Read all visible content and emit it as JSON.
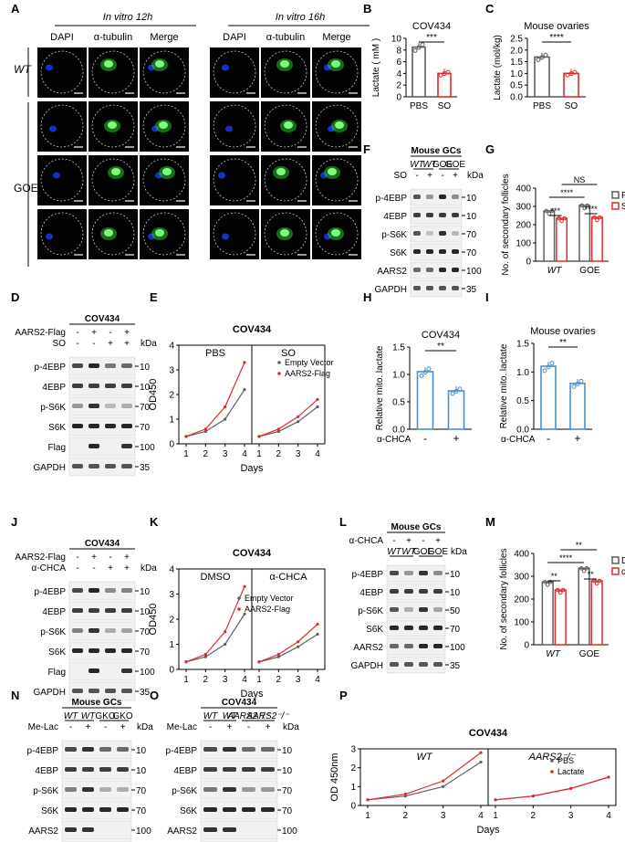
{
  "panels": {
    "A": "A",
    "B": "B",
    "C": "C",
    "D": "D",
    "E": "E",
    "F": "F",
    "G": "G",
    "H": "H",
    "I": "I",
    "J": "J",
    "K": "K",
    "L": "L",
    "M": "M",
    "N": "N",
    "O": "O",
    "P": "P"
  },
  "micro": {
    "h12": "In vitro 12h",
    "h16": "In vitro 16h",
    "dapi": "DAPI",
    "tubulin": "α-tubulin",
    "merge": "Merge",
    "wt": "WT",
    "goe": "GOE"
  },
  "wb": {
    "cov434": "COV434",
    "mgcs": "Mouse GCs",
    "kda": "kDa",
    "aars2flag": "AARS2-Flag",
    "so": "SO",
    "chca": "α-CHCA",
    "melac": "Me-Lac",
    "p4ebp": "p-4EBP",
    "e4ebp": "4EBP",
    "ps6k": "p-S6K",
    "s6k": "S6K",
    "flag": "Flag",
    "aars2": "AARS2",
    "gapdh": "GAPDH",
    "wt": "WT",
    "goe": "GOE",
    "gko": "GKO",
    "aarsko": "AARS2⁻/⁻",
    "plus": "+",
    "minus": "-",
    "m10": "10",
    "m70": "70",
    "m100": "100",
    "m35": "35",
    "m50": "50"
  },
  "colors": {
    "gray": "#5f5f5f",
    "red": "#e02a2a",
    "blue": "#4a8fcf",
    "dapi": "#1530c8",
    "tub": "#29c829"
  },
  "chart_data": [
    {
      "panel": "B",
      "type": "bar",
      "title": "COV434",
      "ylabel": "Lactate ( mM )",
      "categories": [
        "PBS",
        "SO"
      ],
      "values": [
        8.5,
        4.0
      ],
      "ylim": [
        0,
        10
      ],
      "yticks": [
        "0",
        "2",
        "4",
        "6",
        "8",
        "10"
      ],
      "sig": "***",
      "series_colors": [
        "gray",
        "red"
      ]
    },
    {
      "panel": "C",
      "type": "bar",
      "title": "Mouse ovaries",
      "ylabel": "Lactate (mol/kg)",
      "categories": [
        "PBS",
        "SO"
      ],
      "values": [
        1.7,
        1.0
      ],
      "ylim": [
        0,
        2.5
      ],
      "yticks": [
        "0.0",
        "0.5",
        "1.0",
        "1.5",
        "2.0",
        "2.5"
      ],
      "sig": "****",
      "series_colors": [
        "gray",
        "red"
      ]
    },
    {
      "panel": "G",
      "type": "bar",
      "ylabel": "No. of secondary follicles",
      "categories": [
        "WT",
        "GOE"
      ],
      "series": [
        {
          "name": "PBS",
          "values": [
            275,
            305
          ]
        },
        {
          "name": "SO",
          "values": [
            235,
            240
          ]
        }
      ],
      "ylim": [
        0,
        400
      ],
      "yticks": [
        "0",
        "100",
        "200",
        "300",
        "400"
      ],
      "sig": [
        "***",
        "****",
        "****",
        "NS"
      ]
    },
    {
      "panel": "E",
      "type": "line",
      "title": "COV434",
      "ylabel": "OD450",
      "xlabel": "Days",
      "facets": [
        "PBS",
        "SO"
      ],
      "x": [
        1,
        2,
        3,
        4
      ],
      "series": [
        {
          "name": "Empty Vector",
          "PBS": [
            0.3,
            0.5,
            1.0,
            2.2
          ],
          "SO": [
            0.3,
            0.5,
            0.9,
            1.5
          ]
        },
        {
          "name": "AARS2-Flag",
          "PBS": [
            0.3,
            0.6,
            1.5,
            3.3
          ],
          "SO": [
            0.3,
            0.6,
            1.1,
            1.8
          ]
        }
      ],
      "ylim": [
        0,
        4
      ],
      "yticks": [
        "0",
        "1",
        "2",
        "3",
        "4"
      ]
    },
    {
      "panel": "H",
      "type": "bar",
      "title": "COV434",
      "ylabel": "Relative mito. lactate",
      "xlabel": "α-CHCA",
      "categories": [
        "-",
        "+"
      ],
      "values": [
        1.05,
        0.7
      ],
      "ylim": [
        0,
        1.5
      ],
      "yticks": [
        "0.0",
        "0.5",
        "1.0",
        "1.5"
      ],
      "sig": "**"
    },
    {
      "panel": "I",
      "type": "bar",
      "title": "Mouse ovaries",
      "ylabel": "Relative mito. lactate",
      "xlabel": "α-CHCA",
      "categories": [
        "-",
        "+"
      ],
      "values": [
        1.1,
        0.8
      ],
      "ylim": [
        0,
        1.5
      ],
      "yticks": [
        "0.0",
        "0.5",
        "1.0",
        "1.5"
      ],
      "sig": "**"
    },
    {
      "panel": "K",
      "type": "line",
      "title": "COV434",
      "ylabel": "OD450",
      "xlabel": "Days",
      "facets": [
        "DMSO",
        "α-CHCA"
      ],
      "x": [
        1,
        2,
        3,
        4
      ],
      "series": [
        {
          "name": "Empty Vector",
          "DMSO": [
            0.3,
            0.5,
            1.0,
            2.2
          ],
          "CHCA": [
            0.3,
            0.5,
            0.9,
            1.4
          ]
        },
        {
          "name": "AARS2-Flag",
          "DMSO": [
            0.3,
            0.6,
            1.5,
            3.3
          ],
          "CHCA": [
            0.3,
            0.6,
            1.1,
            1.8
          ]
        }
      ],
      "ylim": [
        0,
        4
      ],
      "yticks": [
        "0",
        "1",
        "2",
        "3",
        "4"
      ]
    },
    {
      "panel": "M",
      "type": "bar",
      "ylabel": "No. of secondary follicles",
      "categories": [
        "WT",
        "GOE"
      ],
      "series": [
        {
          "name": "DMSO",
          "values": [
            275,
            335
          ]
        },
        {
          "name": "α-CHCA",
          "values": [
            240,
            280
          ]
        }
      ],
      "ylim": [
        0,
        400
      ],
      "yticks": [
        "0",
        "100",
        "200",
        "300",
        "400"
      ],
      "sig": [
        "**",
        "****",
        "**",
        "**"
      ]
    },
    {
      "panel": "P",
      "type": "line",
      "title": "COV434",
      "ylabel": "OD 450nm",
      "xlabel": "Days",
      "facets": [
        "WT",
        "AARS2⁻/⁻"
      ],
      "x": [
        1,
        2,
        3,
        4
      ],
      "series": [
        {
          "name": "PBS",
          "WT": [
            0.3,
            0.5,
            1.0,
            2.3
          ],
          "KO": [
            0.3,
            0.5,
            0.9,
            1.5
          ]
        },
        {
          "name": "Lactate",
          "WT": [
            0.3,
            0.6,
            1.3,
            2.8
          ],
          "KO": [
            0.3,
            0.5,
            0.9,
            1.5
          ]
        }
      ],
      "ylim": [
        0,
        3
      ],
      "yticks": [
        "0",
        "1",
        "2",
        "3"
      ]
    }
  ]
}
